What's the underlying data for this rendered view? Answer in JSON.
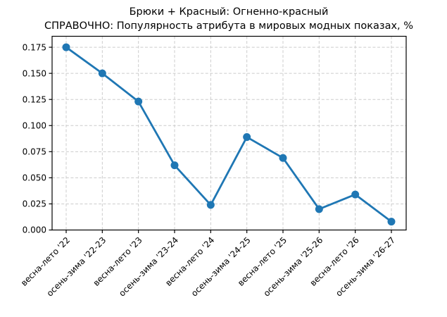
{
  "title": {
    "line1": "Брюки + Красный: Огненно-красный",
    "line2": "СПРАВОЧНО: Популярность атрибута в мировых модных показах, %"
  },
  "colors": {
    "line": "#1f77b4",
    "grid": "#cccccc",
    "spine": "#000000",
    "background": "#ffffff",
    "text": "#000000"
  },
  "chart_data": {
    "type": "line",
    "title": "Брюки + Красный: Огненно-красный\nСПРАВОЧНО: Популярность атрибута в мировых модных показах, %",
    "categories": [
      "весна-лето '22",
      "осень-зима '22-23",
      "весна-лето '23",
      "осень-зима '23-24",
      "весна-лето '24",
      "осень-зима '24-25",
      "весна-лето '25",
      "осень-зима '25-26",
      "весна-лето '26",
      "осень-зима '26-27"
    ],
    "values": [
      0.175,
      0.15,
      0.123,
      0.062,
      0.024,
      0.089,
      0.069,
      0.02,
      0.034,
      0.008
    ],
    "xlabel": "",
    "ylabel": "",
    "ylim": [
      0,
      0.1855
    ],
    "yticks": [
      0.0,
      0.025,
      0.05,
      0.075,
      0.1,
      0.125,
      0.15,
      0.175
    ],
    "ytick_labels": [
      "0.000",
      "0.025",
      "0.050",
      "0.075",
      "0.100",
      "0.125",
      "0.150",
      "0.175"
    ],
    "xtick_rotation_deg": 45,
    "grid": true,
    "grid_style": "dashed",
    "legend_position": "none",
    "marker": "circle"
  }
}
